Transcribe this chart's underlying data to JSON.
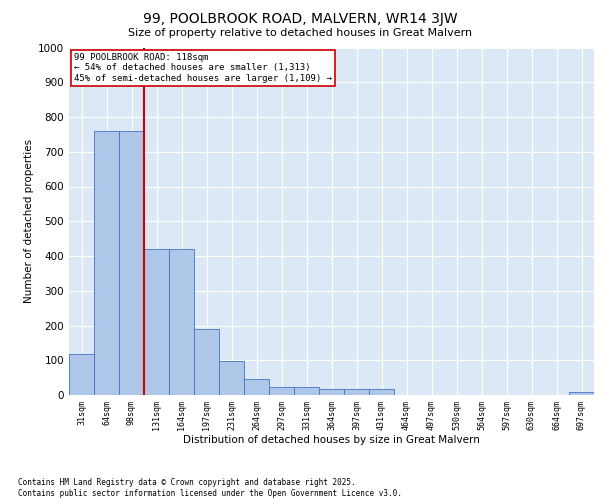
{
  "title_line1": "99, POOLBROOK ROAD, MALVERN, WR14 3JW",
  "title_line2": "Size of property relative to detached houses in Great Malvern",
  "xlabel": "Distribution of detached houses by size in Great Malvern",
  "ylabel": "Number of detached properties",
  "bar_color": "#aec6e8",
  "bar_edge_color": "#4472c4",
  "categories": [
    "31sqm",
    "64sqm",
    "98sqm",
    "131sqm",
    "164sqm",
    "197sqm",
    "231sqm",
    "264sqm",
    "297sqm",
    "331sqm",
    "364sqm",
    "397sqm",
    "431sqm",
    "464sqm",
    "497sqm",
    "530sqm",
    "564sqm",
    "597sqm",
    "630sqm",
    "664sqm",
    "697sqm"
  ],
  "values": [
    118,
    760,
    760,
    420,
    420,
    190,
    97,
    47,
    22,
    22,
    16,
    16,
    16,
    0,
    0,
    0,
    0,
    0,
    0,
    0,
    8
  ],
  "ylim": [
    0,
    1000
  ],
  "yticks": [
    0,
    100,
    200,
    300,
    400,
    500,
    600,
    700,
    800,
    900,
    1000
  ],
  "annotation_line1": "99 POOLBROOK ROAD: 118sqm",
  "annotation_line2": "← 54% of detached houses are smaller (1,313)",
  "annotation_line3": "45% of semi-detached houses are larger (1,109) →",
  "annotation_box_color": "#ffffff",
  "annotation_box_edge": "#cc0000",
  "vline_color": "#cc0000",
  "background_color": "#dce8f5",
  "grid_color": "#ffffff",
  "footer_line1": "Contains HM Land Registry data © Crown copyright and database right 2025.",
  "footer_line2": "Contains public sector information licensed under the Open Government Licence v3.0."
}
